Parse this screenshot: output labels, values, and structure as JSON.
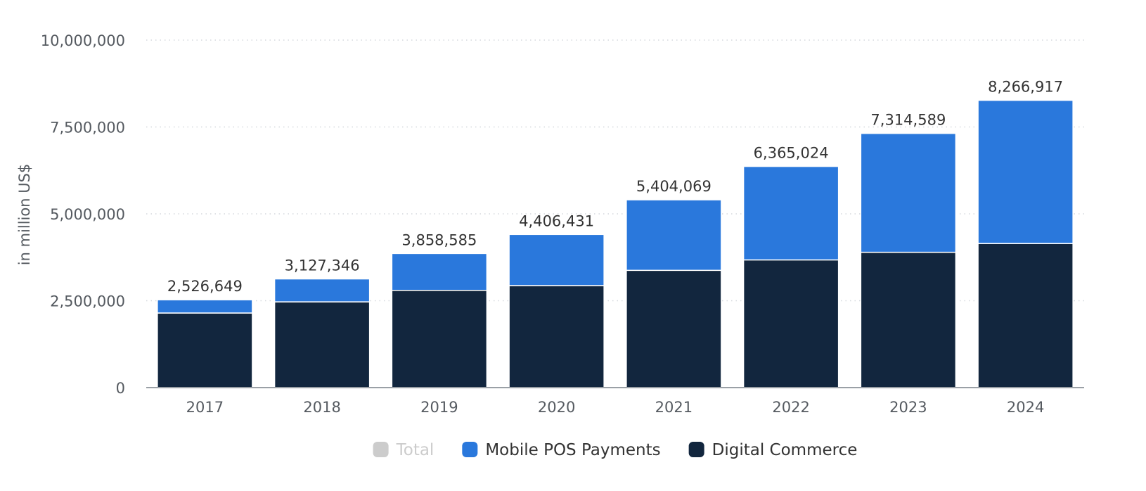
{
  "chart_data": {
    "type": "bar",
    "stacked": true,
    "categories": [
      "2017",
      "2018",
      "2019",
      "2020",
      "2021",
      "2022",
      "2023",
      "2024"
    ],
    "series": [
      {
        "name": "Total",
        "color": "#cccccc",
        "hidden": true,
        "values": [
          2526649,
          3127346,
          3858585,
          4406431,
          5404069,
          6365024,
          7314589,
          8266917
        ]
      },
      {
        "name": "Mobile POS Payments",
        "color": "#2a78dc",
        "values": [
          380000,
          660000,
          1060000,
          1470000,
          2030000,
          2690000,
          3420000,
          4120000
        ]
      },
      {
        "name": "Digital Commerce",
        "color": "#12263e",
        "values": [
          2146649,
          2467346,
          2798585,
          2936431,
          3374069,
          3675024,
          3894589,
          4146917
        ]
      }
    ],
    "data_labels": [
      "2,526,649",
      "3,127,346",
      "3,858,585",
      "4,406,431",
      "5,404,069",
      "6,365,024",
      "7,314,589",
      "8,266,917"
    ],
    "ylabel": "in million US$",
    "ylim": [
      0,
      10000000
    ],
    "yticks": [
      0,
      2500000,
      5000000,
      7500000,
      10000000
    ],
    "ytick_labels": [
      "0",
      "2,500,000",
      "5,000,000",
      "7,500,000",
      "10,000,000"
    ],
    "grid": true,
    "legend_position": "bottom-center"
  }
}
